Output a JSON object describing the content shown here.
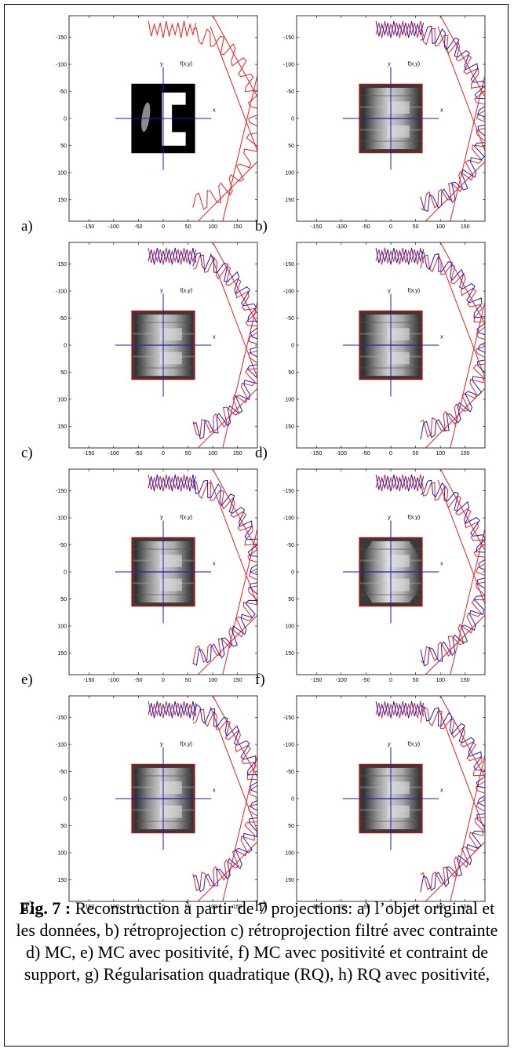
{
  "figure": {
    "caption_label": "Fig. 7 :",
    "caption_text": "Reconstruction à partir de 7 projections: a) l’objet original et les données, b) rétroprojection c) rétroprojection filtré avec contrainte d) MC, e) MC avec positivité, f) MC avec positivité et contraint de support, g) Régularisation quadratique (RQ), h) RQ avec positivité,"
  },
  "panels": [
    {
      "letter": "a)",
      "kind": "original",
      "show_blue": false
    },
    {
      "letter": "b)",
      "kind": "blur",
      "show_blue": true
    },
    {
      "letter": "c)",
      "kind": "blur2",
      "show_blue": true
    },
    {
      "letter": "d)",
      "kind": "blur2",
      "show_blue": true
    },
    {
      "letter": "e)",
      "kind": "blur3",
      "show_blue": true
    },
    {
      "letter": "f)",
      "kind": "support",
      "show_blue": true
    },
    {
      "letter": "g)",
      "kind": "blur3",
      "show_blue": true
    },
    {
      "letter": "h)",
      "kind": "blur3",
      "show_blue": true
    }
  ],
  "axes": {
    "x_ticks": [
      "-150",
      "-100",
      "-50",
      "0",
      "50",
      "100",
      "150"
    ],
    "y_ticks": [
      "-150",
      "-100",
      "-50",
      "0",
      "50",
      "100",
      "150"
    ],
    "x_tick_values": [
      -150,
      -100,
      -50,
      0,
      50,
      100,
      150
    ],
    "y_tick_values": [
      -150,
      -100,
      -50,
      0,
      50,
      100,
      150
    ],
    "xlim": [
      -190,
      190
    ],
    "ylim": [
      -190,
      190
    ],
    "x_axis_label": "x",
    "y_axis_label": "y",
    "object_label": "f(x,y)"
  },
  "colors": {
    "data_line": "#e8201f",
    "fit_line": "#1a1ac8",
    "axis_cross": "#1a1ac8",
    "object_frame": "#b01010"
  }
}
